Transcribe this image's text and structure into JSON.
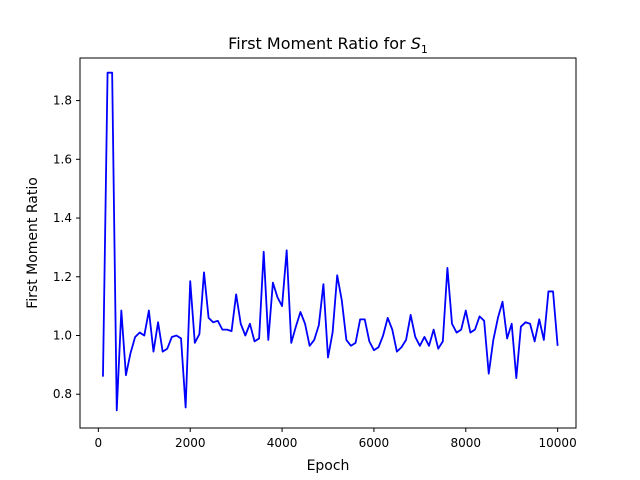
{
  "chart_data": {
    "type": "line",
    "title_main": "First Moment Ratio for ",
    "title_symbol": "S",
    "title_subscript": "1",
    "xlabel": "Epoch",
    "ylabel": "First Moment Ratio",
    "xlim": [
      -400,
      10400
    ],
    "ylim": [
      0.685,
      1.945
    ],
    "xticks": [
      0,
      2000,
      4000,
      6000,
      8000,
      10000
    ],
    "yticks": [
      0.8,
      1.0,
      1.2,
      1.4,
      1.6,
      1.8
    ],
    "xtick_labels": [
      "0",
      "2000",
      "4000",
      "6000",
      "8000",
      "10000"
    ],
    "ytick_labels": [
      "0.8",
      "1.0",
      "1.2",
      "1.4",
      "1.6",
      "1.8"
    ],
    "grid": false,
    "line_color": "#0000ff",
    "series": [
      {
        "x": [
          100,
          200,
          300,
          400,
          500,
          600,
          700,
          800,
          900,
          1000,
          1100,
          1200,
          1300,
          1400,
          1500,
          1600,
          1700,
          1800,
          1900,
          2000,
          2100,
          2200,
          2300,
          2400,
          2500,
          2600,
          2700,
          2800,
          2900,
          3000,
          3100,
          3200,
          3300,
          3400,
          3500,
          3600,
          3700,
          3800,
          3900,
          4000,
          4100,
          4200,
          4300,
          4400,
          4500,
          4600,
          4700,
          4800,
          4900,
          5000,
          5100,
          5200,
          5300,
          5400,
          5500,
          5600,
          5700,
          5800,
          5900,
          6000,
          6100,
          6200,
          6300,
          6400,
          6500,
          6600,
          6700,
          6800,
          6900,
          7000,
          7100,
          7200,
          7300,
          7400,
          7500,
          7600,
          7700,
          7800,
          7900,
          8000,
          8100,
          8200,
          8300,
          8400,
          8500,
          8600,
          8700,
          8800,
          8900,
          9000,
          9100,
          9200,
          9300,
          9400,
          9500,
          9600,
          9700,
          9800,
          9900,
          10000
        ],
        "values": [
          0.86,
          1.895,
          1.895,
          0.745,
          1.085,
          0.865,
          0.94,
          0.995,
          1.01,
          1.0,
          1.085,
          0.945,
          1.045,
          0.945,
          0.955,
          0.995,
          1.0,
          0.99,
          0.755,
          1.185,
          0.975,
          1.005,
          1.215,
          1.06,
          1.045,
          1.05,
          1.02,
          1.02,
          1.015,
          1.14,
          1.04,
          1.0,
          1.04,
          0.98,
          0.99,
          1.285,
          0.985,
          1.18,
          1.13,
          1.1,
          1.29,
          0.975,
          1.03,
          1.08,
          1.04,
          0.965,
          0.985,
          1.035,
          1.175,
          0.925,
          1.01,
          1.205,
          1.12,
          0.985,
          0.965,
          0.975,
          1.055,
          1.055,
          0.98,
          0.95,
          0.96,
          1.0,
          1.06,
          1.02,
          0.945,
          0.96,
          0.985,
          1.07,
          0.995,
          0.965,
          0.995,
          0.965,
          1.02,
          0.955,
          0.98,
          1.23,
          1.04,
          1.01,
          1.02,
          1.085,
          1.01,
          1.02,
          1.065,
          1.05,
          0.87,
          0.985,
          1.06,
          1.115,
          0.99,
          1.04,
          0.855,
          1.03,
          1.045,
          1.04,
          0.98,
          1.055,
          0.985,
          1.15,
          1.15,
          0.965
        ]
      }
    ]
  }
}
